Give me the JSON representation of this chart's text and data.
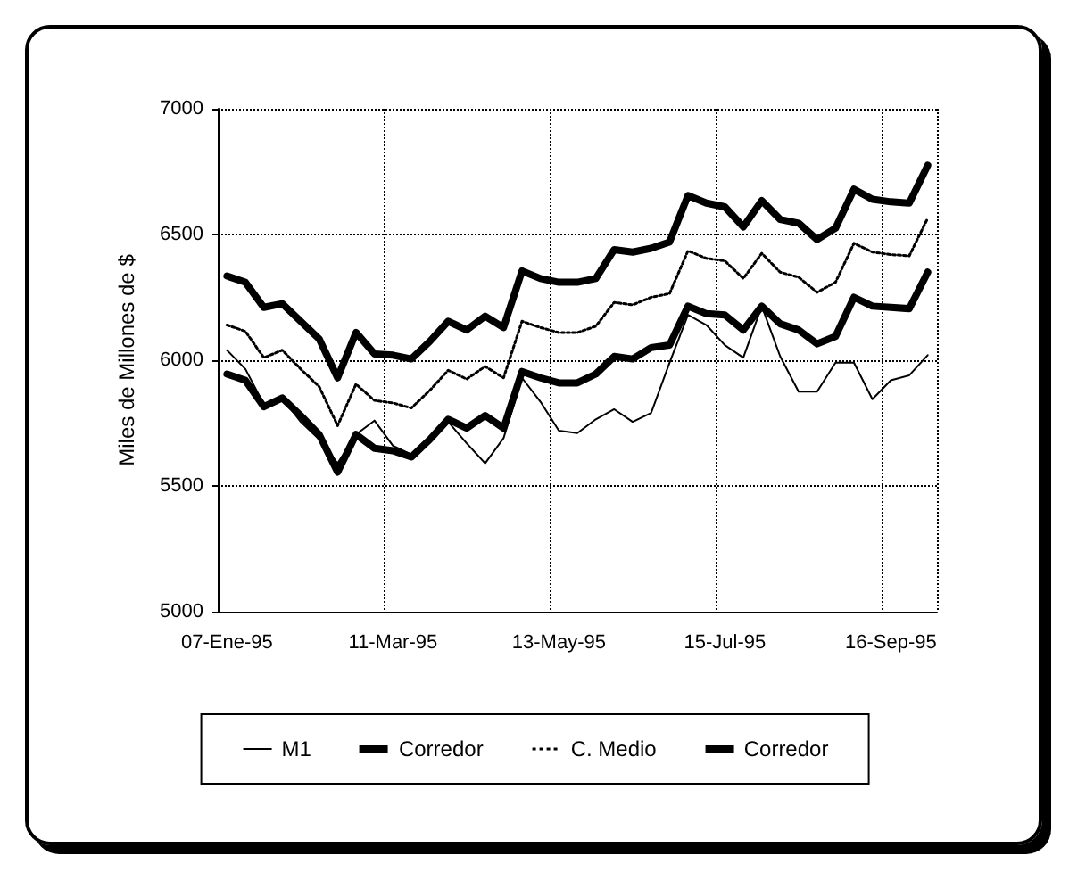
{
  "chart_data": {
    "type": "line",
    "ylabel": "Miles de Millones de $",
    "categories": [
      "07-Ene-95",
      null,
      null,
      null,
      null,
      null,
      null,
      null,
      null,
      "11-Mar-95",
      null,
      null,
      null,
      null,
      null,
      null,
      null,
      null,
      "13-May-95",
      null,
      null,
      null,
      null,
      null,
      null,
      null,
      null,
      "15-Jul-95",
      null,
      null,
      null,
      null,
      null,
      null,
      null,
      null,
      "16-Sep-95",
      null,
      null
    ],
    "ylim": [
      5000,
      7000
    ],
    "yticks": [
      5000,
      5500,
      6000,
      6500,
      7000
    ],
    "grid": true,
    "legend": "bottom",
    "marker": "none",
    "series": [
      {
        "name": "M1",
        "color": "#000000",
        "line_style": "solid",
        "values": [
          6040,
          5965,
          5825,
          5850,
          5755,
          5685,
          5590,
          5705,
          5760,
          5660,
          5625,
          5685,
          5755,
          5670,
          5590,
          5690,
          5930,
          5835,
          5720,
          5710,
          5765,
          5805,
          5755,
          5790,
          5990,
          6180,
          6140,
          6060,
          6010,
          6215,
          6015,
          5875,
          5875,
          5990,
          5990,
          5845,
          5920,
          5940,
          6020
        ]
      },
      {
        "name": "Corredor",
        "color": "#000000",
        "line_style": "solid",
        "values": [
          5945,
          5920,
          5815,
          5850,
          5780,
          5705,
          5555,
          5705,
          5650,
          5640,
          5615,
          5685,
          5765,
          5730,
          5780,
          5730,
          5955,
          5930,
          5910,
          5910,
          5945,
          6015,
          6005,
          6050,
          6060,
          6215,
          6185,
          6180,
          6120,
          6215,
          6145,
          6120,
          6065,
          6095,
          6250,
          6215,
          6210,
          6205,
          6350
        ]
      },
      {
        "name": "C. Medio",
        "color": "#000000",
        "line_style": "dotted",
        "values": [
          6140,
          6115,
          6010,
          6040,
          5965,
          5895,
          5740,
          5905,
          5840,
          5830,
          5810,
          5880,
          5960,
          5925,
          5975,
          5930,
          6155,
          6130,
          6110,
          6110,
          6135,
          6230,
          6220,
          6250,
          6265,
          6435,
          6405,
          6395,
          6325,
          6425,
          6350,
          6330,
          6270,
          6310,
          6465,
          6430,
          6420,
          6415,
          6565
        ]
      },
      {
        "name": "Corredor",
        "color": "#000000",
        "line_style": "solid",
        "values": [
          6335,
          6310,
          6210,
          6225,
          6155,
          6085,
          5930,
          6110,
          6025,
          6020,
          6005,
          6075,
          6155,
          6120,
          6175,
          6130,
          6355,
          6325,
          6310,
          6310,
          6325,
          6440,
          6430,
          6445,
          6470,
          6655,
          6625,
          6610,
          6530,
          6635,
          6560,
          6545,
          6480,
          6525,
          6680,
          6640,
          6630,
          6625,
          6775
        ]
      }
    ]
  }
}
